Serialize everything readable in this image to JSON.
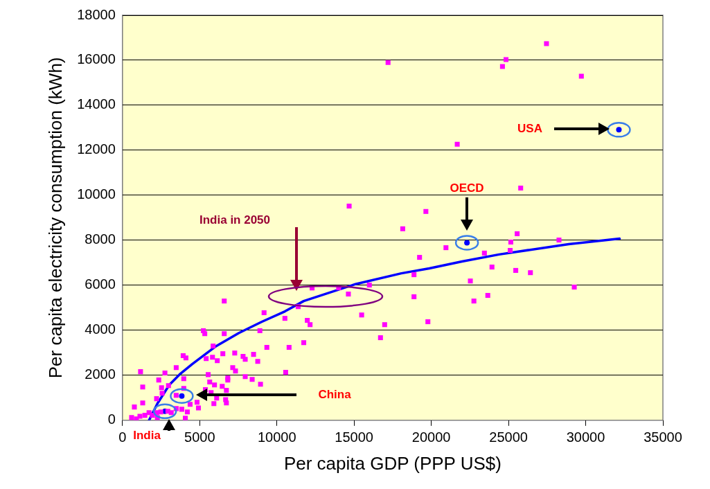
{
  "chart_data": {
    "type": "scatter",
    "xlabel": "Per capita GDP (PPP US$)",
    "ylabel": "Per capita electricity consumption (kWh)",
    "xlim": [
      0,
      35000
    ],
    "xticks": [
      0,
      5000,
      10000,
      15000,
      20000,
      25000,
      30000,
      35000
    ],
    "ylim": [
      0,
      18000
    ],
    "yticks": [
      0,
      2000,
      4000,
      6000,
      8000,
      10000,
      12000,
      14000,
      16000,
      18000
    ],
    "grid": "y",
    "legend": false,
    "marker": "square",
    "series": [
      {
        "color": "#ff00ff",
        "x": [
          17200,
          24840,
          24610,
          27460,
          29720,
          21680,
          25790,
          14680,
          18150,
          19650,
          20950,
          19240,
          25560,
          25150,
          25110,
          23440,
          28270,
          23930,
          18880,
          25470,
          26420,
          22530,
          15990,
          29260,
          18880,
          23660,
          22760,
          15490,
          16980,
          19780,
          12280,
          14000,
          14630,
          11380,
          11970,
          12150,
          6590,
          9170,
          10520,
          5240,
          5330,
          6590,
          8900,
          5870,
          9350,
          10790,
          11740,
          3930,
          4110,
          5420,
          5830,
          6140,
          6500,
          7270,
          7810,
          7950,
          8490,
          8760,
          3480,
          7140,
          7320,
          10570,
          1170,
          2750,
          5550,
          6820,
          6820,
          7950,
          8400,
          8940,
          3970,
          2350,
          1310,
          2530,
          2980,
          5650,
          5960,
          6460,
          6730,
          5370,
          5740,
          6100,
          6680,
          6730,
          5920,
          4830,
          4380,
          4920,
          4200,
          4070,
          3840,
          3480,
          3970,
          2570,
          2210,
          1310,
          770,
          3480,
          2940,
          3160,
          590,
          900,
          1130,
          1450,
          1720,
          1940,
          2260,
          2210,
          2480,
          16710
        ],
        "values": [
          15900,
          16030,
          15720,
          16740,
          15290,
          12270,
          10320,
          9520,
          8510,
          9280,
          7670,
          7240,
          8290,
          7920,
          7550,
          7430,
          8010,
          6810,
          6470,
          6660,
          6560,
          6190,
          6010,
          5920,
          5490,
          5550,
          5300,
          4680,
          4250,
          4380,
          5880,
          5890,
          5610,
          5050,
          4440,
          4250,
          5300,
          4780,
          4530,
          3980,
          3850,
          3850,
          3980,
          3300,
          3240,
          3240,
          3450,
          2870,
          2770,
          2740,
          2800,
          2650,
          2960,
          2990,
          2840,
          2710,
          2930,
          2620,
          2340,
          2340,
          2190,
          2130,
          2160,
          2100,
          2030,
          1880,
          1790,
          1940,
          1820,
          1600,
          1850,
          1790,
          1480,
          1450,
          1540,
          1700,
          1570,
          1510,
          1330,
          1360,
          1230,
          990,
          920,
          770,
          740,
          800,
          710,
          550,
          370,
          90,
          490,
          1110,
          1420,
          1200,
          960,
          770,
          590,
          520,
          400,
          340,
          120,
          60,
          180,
          220,
          340,
          220,
          120,
          340,
          370,
          3670
        ]
      },
      {
        "color": "#0000ff",
        "marker": "circle",
        "x": [
          32150,
          22310,
          3840,
          2750
        ],
        "values": [
          12910,
          7890,
          1080,
          400
        ]
      },
      {
        "type": "line",
        "color": "#0000ff",
        "marker": "none",
        "x": [
          1720,
          2260,
          3030,
          3750,
          4520,
          6010,
          7540,
          9030,
          10520,
          11740,
          15040,
          18060,
          19870,
          21990,
          24390,
          28900,
          32200
        ],
        "values": [
          0,
          740,
          1570,
          2070,
          2500,
          3270,
          3880,
          4380,
          4840,
          5300,
          6040,
          6530,
          6750,
          7060,
          7370,
          7830,
          8070
        ]
      }
    ],
    "annotations": [
      "USA",
      "OECD",
      "China",
      "India",
      "India in 2050"
    ]
  }
}
